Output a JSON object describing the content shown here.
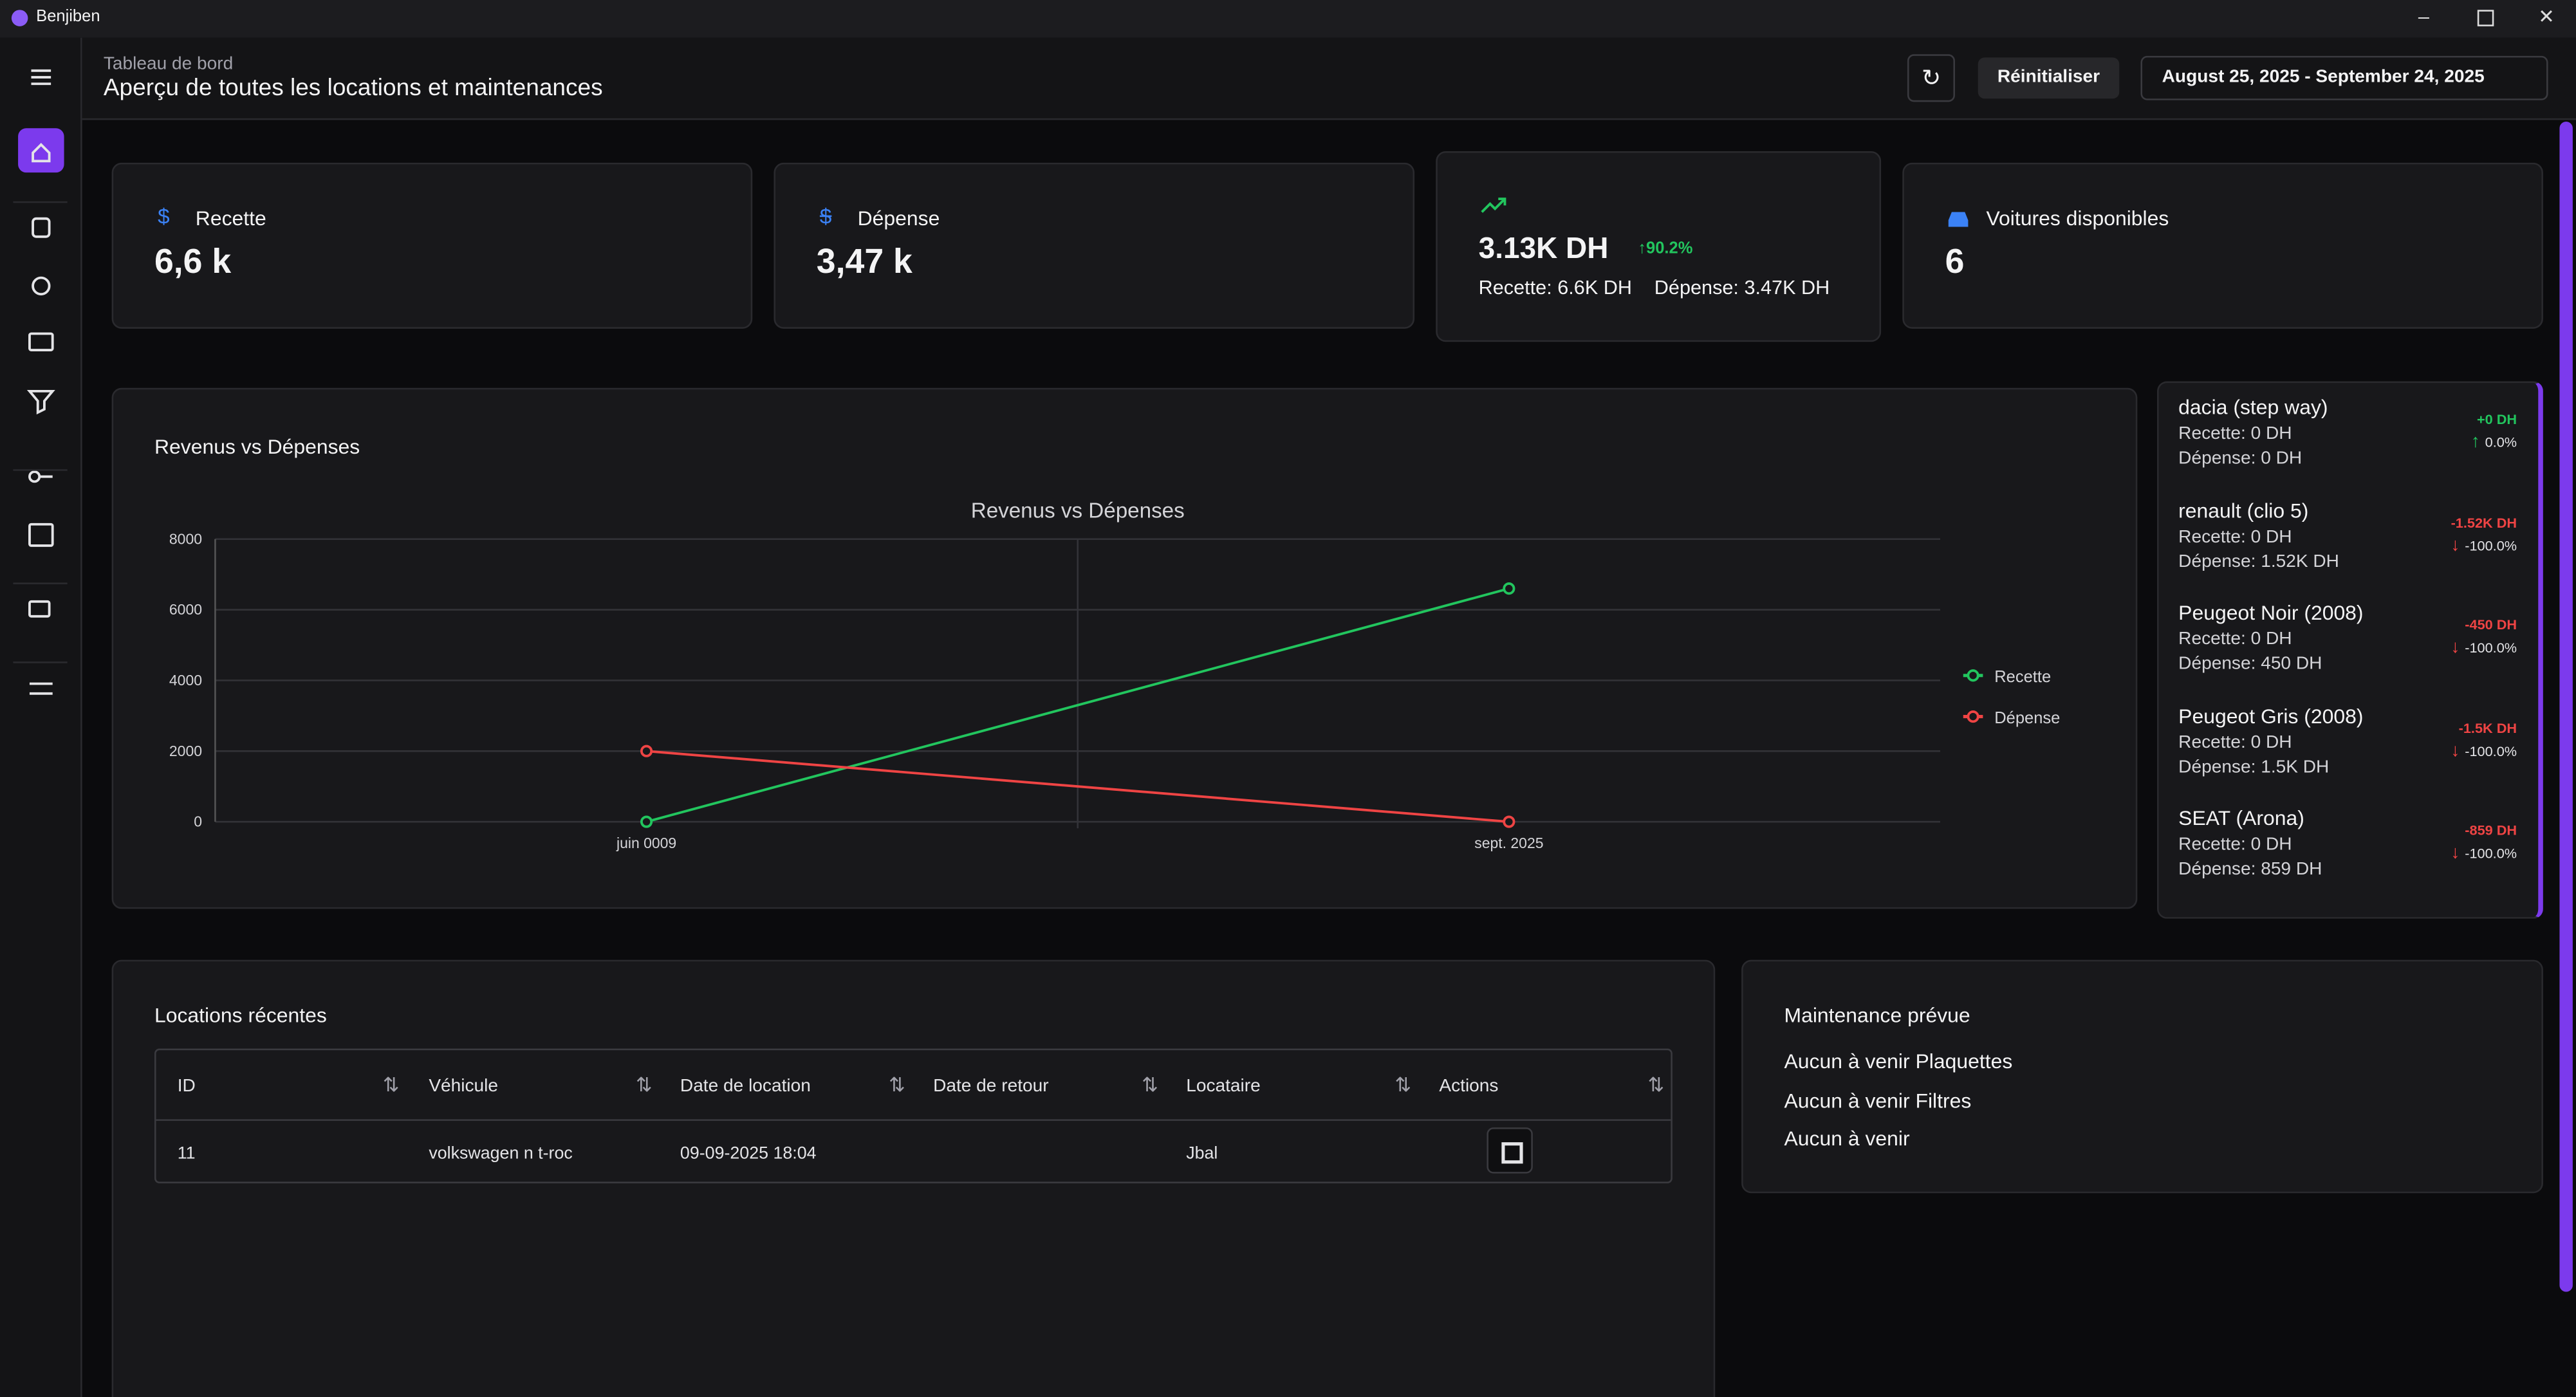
{
  "window": {
    "title": "Benjiben"
  },
  "header": {
    "breadcrumb": "Tableau de bord",
    "title": "Aperçu de toutes les locations et maintenances",
    "reset": "Réinitialiser",
    "date_range": "August 25, 2025 - September 24, 2025"
  },
  "cards": [
    {
      "label": "Recette",
      "value": "6,6 k"
    },
    {
      "label": "Dépense",
      "value": "3,47 k"
    },
    {
      "value": "3.13K DH",
      "change": "90.2%",
      "detail_recette": "Recette: 6.6K DH",
      "detail_depense": "Dépense: 3.47K DH"
    },
    {
      "label": "Voitures disponibles",
      "value": "6"
    }
  ],
  "chart_panel": {
    "heading": "Revenus vs Dépenses",
    "chart_data": {
      "type": "line",
      "title": "Revenus vs Dépenses",
      "categories": [
        "juin 0009",
        "sept. 2025"
      ],
      "series": [
        {
          "name": "Recette",
          "color": "#22c55e",
          "values": [
            0,
            6600
          ]
        },
        {
          "name": "Dépense",
          "color": "#ef4444",
          "values": [
            2000,
            0
          ]
        }
      ],
      "ylim": [
        0,
        8000
      ],
      "yticks": [
        0,
        2000,
        4000,
        6000,
        8000
      ],
      "grid": true,
      "legend": "right"
    }
  },
  "vehicles": [
    {
      "name": "dacia (step way)",
      "recette": "Recette: 0 DH",
      "depense": "Dépense: 0 DH",
      "delta": "+0 DH",
      "pct": "0.0%"
    },
    {
      "name": "renault (clio 5)",
      "recette": "Recette: 0 DH",
      "depense": "Dépense: 1.52K DH",
      "delta": "-1.52K DH",
      "pct": "-100.0%"
    },
    {
      "name": "Peugeot Noir (2008)",
      "recette": "Recette: 0 DH",
      "depense": "Dépense: 450 DH",
      "delta": "-450 DH",
      "pct": "-100.0%"
    },
    {
      "name": "Peugeot Gris (2008)",
      "recette": "Recette: 0 DH",
      "depense": "Dépense: 1.5K DH",
      "delta": "-1.5K DH",
      "pct": "-100.0%"
    },
    {
      "name": "SEAT (Arona)",
      "recette": "Recette: 0 DH",
      "depense": "Dépense: 859 DH",
      "delta": "-859 DH",
      "pct": "-100.0%"
    }
  ],
  "recent_rentals": {
    "title": "Locations récentes",
    "columns": [
      "ID",
      "Véhicule",
      "Date de location",
      "Date de retour",
      "Locataire",
      "Actions"
    ],
    "rows": [
      {
        "id": "11",
        "vehicle": "volkswagen n t-roc",
        "date_location": "09-09-2025 18:04",
        "locataire": "Jbal"
      }
    ]
  },
  "maintenance": {
    "title": "Maintenance prévue",
    "items": [
      "Aucun à venir Plaquettes",
      "Aucun à venir Filtres",
      "Aucun à venir"
    ]
  }
}
